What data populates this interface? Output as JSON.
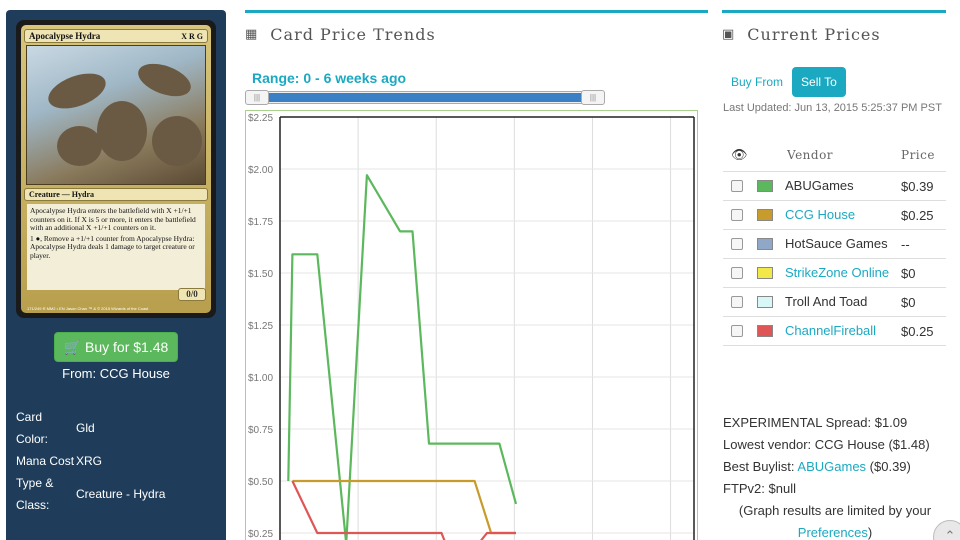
{
  "card": {
    "name": "Apocalypse Hydra",
    "mana_symbols": "X R G",
    "type_line": "Creature — Hydra",
    "rules_text_1": "Apocalypse Hydra enters the battlefield with X +1/+1 counters on it. If X is 5 or more, it enters the battlefield with an additional X +1/+1 counters on it.",
    "rules_text_2": "1 ●, Remove a +1/+1 counter from Apocalypse Hydra: Apocalypse Hydra deals 1 damage to target creature or player.",
    "pt": "0/0",
    "footer": "171/249 R  MM2 • EN  Jason Chan   ™ & © 2015 Wizards of the Coast"
  },
  "buy": {
    "label": "Buy for $1.48",
    "from": "From: CCG House",
    "icon": "cart-icon"
  },
  "info": [
    {
      "key": "Card Color:",
      "value": "Gld"
    },
    {
      "key": "Mana Cost",
      "value": "XRG"
    },
    {
      "key": "Type & Class:",
      "value": "Creature - Hydra"
    }
  ],
  "trends": {
    "title": "Card Price Trends",
    "icon": "calendar-icon",
    "range_label": "Range: 0 - 6 weeks ago"
  },
  "chart_data": {
    "type": "line",
    "y_ticks": [
      "$2.25",
      "$2.00",
      "$1.75",
      "$1.50",
      "$1.25",
      "$1.00",
      "$0.75",
      "$0.50",
      "$0.25"
    ],
    "ylim": [
      0.25,
      2.25
    ],
    "grid": true,
    "x_range": [
      0,
      100
    ],
    "series": [
      {
        "name": "ABUGames",
        "color": "#5cb85c",
        "points": [
          [
            2,
            0.5
          ],
          [
            3,
            1.59
          ],
          [
            9,
            1.59
          ],
          [
            16,
            0.2
          ],
          [
            21,
            1.97
          ],
          [
            29,
            1.7
          ],
          [
            32,
            1.7
          ],
          [
            36,
            0.68
          ],
          [
            53,
            0.68
          ],
          [
            57,
            0.39
          ]
        ]
      },
      {
        "name": "CCG House",
        "color": "#c79c2c",
        "points": [
          [
            3,
            0.5
          ],
          [
            47,
            0.5
          ],
          [
            51,
            0.25
          ],
          [
            57,
            0.25
          ]
        ]
      },
      {
        "name": "ChannelFireball",
        "color": "#e05555",
        "points": [
          [
            3,
            0.5
          ],
          [
            9,
            0.25
          ],
          [
            39,
            0.25
          ],
          [
            40,
            0.2
          ],
          [
            48,
            0.2
          ],
          [
            50,
            0.25
          ],
          [
            57,
            0.25
          ]
        ]
      }
    ]
  },
  "prices": {
    "title": "Current Prices",
    "icon": "money-icon",
    "tab_buy": "Buy From",
    "tab_sell": "Sell To",
    "updated": "Last Updated: Jun 13, 2015 5:25:37 PM PST",
    "col_vendor": "Vendor",
    "col_price": "Price",
    "eye_icon": "eye-icon",
    "vendors": [
      {
        "name": "ABUGames",
        "price": "$0.39",
        "color": "#5cb85c",
        "link": false
      },
      {
        "name": "CCG House",
        "price": "$0.25",
        "color": "#c79c2c",
        "link": true
      },
      {
        "name": "HotSauce Games",
        "price": "--",
        "color": "#8fa8c8",
        "link": false
      },
      {
        "name": "StrikeZone Online",
        "price": "$0",
        "color": "#f2e84a",
        "link": true
      },
      {
        "name": "Troll And Toad",
        "price": "$0",
        "color": "#d8f7f7",
        "link": false
      },
      {
        "name": "ChannelFireball",
        "price": "$0.25",
        "color": "#e05555",
        "link": true
      }
    ]
  },
  "summary": {
    "spread": "EXPERIMENTAL Spread: $1.09",
    "lowest": "Lowest vendor: CCG House ($1.48)",
    "buylist_prefix": "Best Buylist: ",
    "buylist_vendor": "ABUGames",
    "buylist_suffix": " ($0.39)",
    "ftp": "FTPv2: $null",
    "note_prefix": "(Graph results are limited by your ",
    "note_link": "Preferences",
    "note_suffix": ")"
  }
}
